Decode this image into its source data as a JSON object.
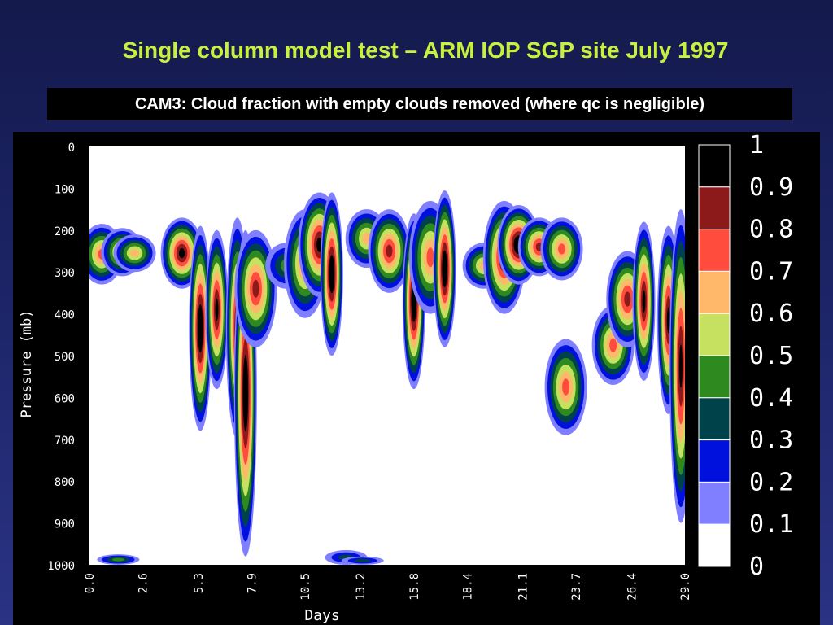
{
  "slide": {
    "title": "Single column model test – ARM IOP SGP site July 1997",
    "subtitle": "CAM3: Cloud fraction with empty clouds removed (where qc is negligible)"
  },
  "chart_data": {
    "type": "heatmap",
    "xlabel": "Days",
    "ylabel": "Pressure (mb)",
    "x_ticks": [
      "0.0",
      "2.6",
      "5.3",
      "7.9",
      "10.5",
      "13.2",
      "15.8",
      "18.4",
      "21.1",
      "23.7",
      "26.4",
      "29.0"
    ],
    "x_tick_values": [
      0.0,
      2.6,
      5.3,
      7.9,
      10.5,
      13.2,
      15.8,
      18.4,
      21.1,
      23.7,
      26.4,
      29.0
    ],
    "y_ticks": [
      "0",
      "100",
      "200",
      "300",
      "400",
      "500",
      "600",
      "700",
      "800",
      "900",
      "1000"
    ],
    "y_tick_values": [
      0,
      100,
      200,
      300,
      400,
      500,
      600,
      700,
      800,
      900,
      1000
    ],
    "xlim": [
      0.0,
      29.0
    ],
    "ylim": [
      0,
      1000
    ],
    "y_inverted": true,
    "colorbar": {
      "labels": [
        "1",
        "0.9",
        "0.8",
        "0.7",
        "0.6",
        "0.5",
        "0.4",
        "0.3",
        "0.2",
        "0.1",
        "0"
      ],
      "levels": [
        0.0,
        0.1,
        0.2,
        0.3,
        0.4,
        0.5,
        0.6,
        0.7,
        0.8,
        0.9,
        1.0
      ],
      "colors": [
        "#ffffff",
        "#7f7fff",
        "#0011dd",
        "#00424a",
        "#2e8a1f",
        "#c6e060",
        "#ffb86a",
        "#ff4c3c",
        "#8c1a1a",
        "#000000"
      ]
    },
    "cloud_features": [
      {
        "day": 0.6,
        "p_top": 185,
        "p_bottom": 330,
        "peak": 0.7
      },
      {
        "day": 1.6,
        "p_top": 195,
        "p_bottom": 310,
        "peak": 0.7
      },
      {
        "day": 2.2,
        "p_top": 210,
        "p_bottom": 300,
        "peak": 0.6
      },
      {
        "day": 4.5,
        "p_top": 170,
        "p_bottom": 340,
        "peak": 0.9
      },
      {
        "day": 5.4,
        "p_top": 190,
        "p_bottom": 680,
        "peak": 1.0
      },
      {
        "day": 6.2,
        "p_top": 200,
        "p_bottom": 580,
        "peak": 0.9
      },
      {
        "day": 7.2,
        "p_top": 170,
        "p_bottom": 700,
        "peak": 0.9
      },
      {
        "day": 7.6,
        "p_top": 200,
        "p_bottom": 980,
        "peak": 1.0
      },
      {
        "day": 8.1,
        "p_top": 200,
        "p_bottom": 480,
        "peak": 0.8
      },
      {
        "day": 9.6,
        "p_top": 230,
        "p_bottom": 340,
        "peak": 0.4
      },
      {
        "day": 10.5,
        "p_top": 150,
        "p_bottom": 410,
        "peak": 0.7
      },
      {
        "day": 11.2,
        "p_top": 110,
        "p_bottom": 360,
        "peak": 0.9
      },
      {
        "day": 11.8,
        "p_top": 110,
        "p_bottom": 500,
        "peak": 1.0
      },
      {
        "day": 13.5,
        "p_top": 150,
        "p_bottom": 290,
        "peak": 0.6
      },
      {
        "day": 14.6,
        "p_top": 150,
        "p_bottom": 350,
        "peak": 0.8
      },
      {
        "day": 15.8,
        "p_top": 160,
        "p_bottom": 580,
        "peak": 1.0
      },
      {
        "day": 16.6,
        "p_top": 130,
        "p_bottom": 400,
        "peak": 0.7
      },
      {
        "day": 17.3,
        "p_top": 105,
        "p_bottom": 480,
        "peak": 1.0
      },
      {
        "day": 19.2,
        "p_top": 230,
        "p_bottom": 340,
        "peak": 0.6
      },
      {
        "day": 20.2,
        "p_top": 130,
        "p_bottom": 400,
        "peak": 0.9
      },
      {
        "day": 20.9,
        "p_top": 140,
        "p_bottom": 330,
        "peak": 1.0
      },
      {
        "day": 21.9,
        "p_top": 170,
        "p_bottom": 310,
        "peak": 0.8
      },
      {
        "day": 23.0,
        "p_top": 170,
        "p_bottom": 320,
        "peak": 0.7
      },
      {
        "day": 23.2,
        "p_top": 460,
        "p_bottom": 690,
        "peak": 0.7
      },
      {
        "day": 25.5,
        "p_top": 380,
        "p_bottom": 570,
        "peak": 0.7
      },
      {
        "day": 26.2,
        "p_top": 250,
        "p_bottom": 480,
        "peak": 0.8
      },
      {
        "day": 27.0,
        "p_top": 180,
        "p_bottom": 560,
        "peak": 0.9
      },
      {
        "day": 28.2,
        "p_top": 190,
        "p_bottom": 640,
        "peak": 0.9
      },
      {
        "day": 28.8,
        "p_top": 150,
        "p_bottom": 900,
        "peak": 0.9
      },
      {
        "day": 1.4,
        "p_top": 975,
        "p_bottom": 1000,
        "peak": 0.4
      },
      {
        "day": 12.5,
        "p_top": 965,
        "p_bottom": 1000,
        "peak": 0.3
      },
      {
        "day": 13.3,
        "p_top": 980,
        "p_bottom": 1000,
        "peak": 0.3
      }
    ]
  }
}
